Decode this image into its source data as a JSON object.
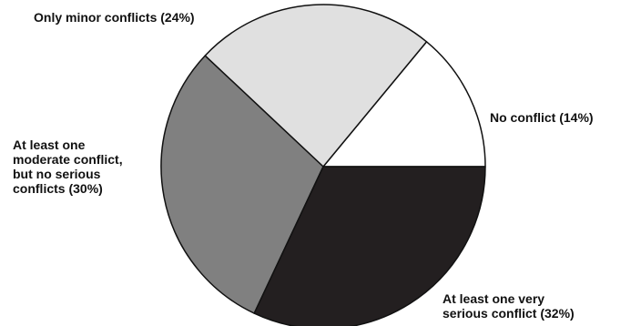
{
  "chart_data": {
    "type": "pie",
    "start_angle_deg": 0,
    "direction": "counterclockwise",
    "slices": [
      {
        "label": "No conflict",
        "value": 14,
        "display": "No conflict  (14%)",
        "color": "#ffffff"
      },
      {
        "label": "Only minor conflicts",
        "value": 24,
        "display": "Only minor conflicts  (24%)",
        "color": "#e0e0e0"
      },
      {
        "label": "At least one moderate conflict, but no serious conflicts",
        "value": 30,
        "display": "At least one\nmoderate conflict,\nbut no serious\nconflicts  (30%)",
        "color": "#808080"
      },
      {
        "label": "At least one very serious conflict",
        "value": 32,
        "display": "At least one very\nserious conflict  (32%)",
        "color": "#231f20"
      }
    ]
  }
}
